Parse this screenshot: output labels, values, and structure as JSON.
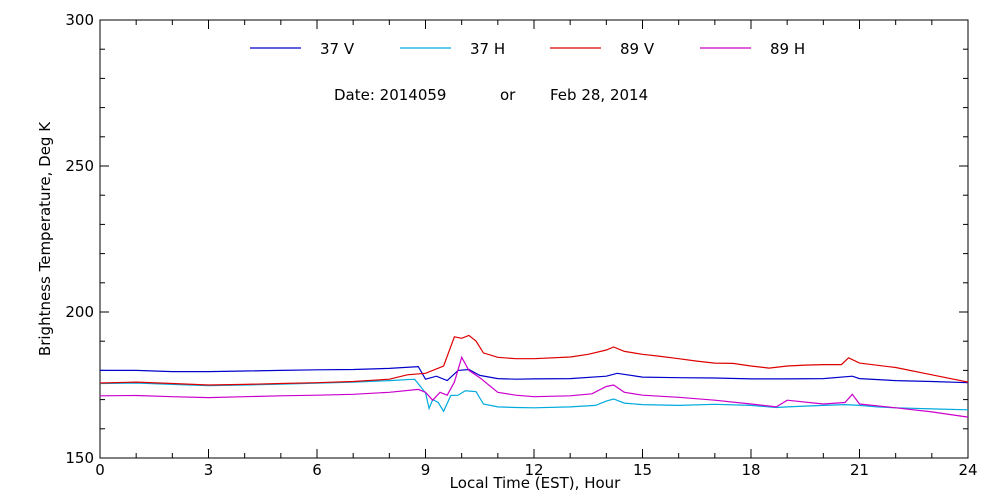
{
  "chart_data": {
    "type": "line",
    "title": "",
    "xlabel": "Local Time (EST), Hour",
    "ylabel": "Brightness Temperature, Deg K",
    "xlim": [
      0,
      24
    ],
    "ylim": [
      150,
      300
    ],
    "xticks": [
      "0",
      "3",
      "6",
      "9",
      "12",
      "15",
      "18",
      "21",
      "24"
    ],
    "yticks": [
      "150",
      "200",
      "250",
      "300"
    ],
    "grid": false,
    "legend_position": "top",
    "annotation": {
      "date_label": "Date: 2014059",
      "or_label": "or",
      "date_text": "Feb 28, 2014"
    },
    "series": [
      {
        "name": "37 V",
        "color": "#0000cc",
        "x": [
          0,
          1,
          2,
          3,
          4,
          5,
          6,
          7,
          8,
          8.8,
          9,
          9.3,
          9.6,
          9.9,
          10.2,
          10.5,
          11,
          11.5,
          12,
          13,
          14,
          14.3,
          15,
          16,
          17,
          18,
          19,
          20,
          20.8,
          21,
          22,
          23,
          24
        ],
        "y": [
          180,
          180,
          179.6,
          179.6,
          179.8,
          180,
          180.2,
          180.3,
          180.7,
          181.3,
          177,
          178,
          176.5,
          180,
          180.3,
          178.3,
          177.2,
          177,
          177.1,
          177.2,
          178,
          179,
          177.7,
          177.5,
          177.4,
          177.1,
          177.1,
          177.2,
          178,
          177.2,
          176.5,
          176.2,
          175.8
        ]
      },
      {
        "name": "37 H",
        "color": "#00aadd",
        "x": [
          0,
          1,
          2,
          3,
          4,
          5,
          6,
          7,
          8,
          8.7,
          9,
          9.1,
          9.2,
          9.35,
          9.5,
          9.7,
          9.9,
          10.1,
          10.4,
          10.6,
          11,
          11.5,
          12,
          13,
          13.7,
          14,
          14.2,
          14.5,
          15,
          16,
          17,
          18,
          18.7,
          19,
          20,
          20.6,
          21,
          21.5,
          22,
          23,
          24
        ],
        "y": [
          175.5,
          175.7,
          175.2,
          174.8,
          175,
          175.3,
          175.6,
          176,
          176.5,
          177,
          172.3,
          167,
          170,
          169,
          166,
          171.4,
          171.5,
          173,
          172.7,
          168.5,
          167.5,
          167.3,
          167.2,
          167.5,
          168,
          169.5,
          170.2,
          168.8,
          168.3,
          168,
          168.4,
          168,
          167.3,
          167.5,
          168,
          168.3,
          168,
          167.5,
          167.2,
          166.8,
          166.5
        ]
      },
      {
        "name": "89 V",
        "color": "#dd0000",
        "x": [
          0,
          1,
          2,
          3,
          4,
          5,
          6,
          7,
          8,
          8.5,
          9,
          9.5,
          9.8,
          10,
          10.2,
          10.4,
          10.6,
          11,
          11.5,
          12,
          13,
          13.5,
          14,
          14.2,
          14.5,
          15,
          15.5,
          16,
          16.5,
          17,
          17.5,
          18,
          18.5,
          19,
          19.5,
          20,
          20.5,
          20.7,
          21,
          22,
          23,
          24
        ],
        "y": [
          175.7,
          176,
          175.5,
          175,
          175.2,
          175.5,
          175.8,
          176.2,
          177,
          178.5,
          179,
          181.5,
          191.5,
          191,
          192,
          190,
          186,
          184.5,
          184,
          184,
          184.6,
          185.5,
          187,
          188,
          186.5,
          185.5,
          184.8,
          184,
          183.2,
          182.5,
          182.4,
          181.5,
          180.8,
          181.5,
          181.8,
          182,
          182,
          184.3,
          182.5,
          181,
          178.5,
          176
        ]
      },
      {
        "name": "89 H",
        "color": "#cc00cc",
        "x": [
          0,
          1,
          2,
          3,
          4,
          5,
          6,
          7,
          8,
          8.8,
          9,
          9.2,
          9.4,
          9.6,
          9.8,
          10,
          10.2,
          10.5,
          11,
          11.5,
          12,
          13,
          13.6,
          14,
          14.2,
          14.5,
          15,
          16,
          17,
          18,
          18.7,
          19,
          20,
          20.6,
          20.8,
          21,
          22,
          23,
          24
        ],
        "y": [
          171.3,
          171.4,
          171,
          170.7,
          171,
          171.3,
          171.5,
          171.8,
          172.5,
          173.5,
          172.5,
          169.8,
          172.5,
          171.5,
          176,
          184.5,
          180,
          177.5,
          172.5,
          171.5,
          171,
          171.3,
          172,
          174.5,
          175,
          172.5,
          171.5,
          170.8,
          169.8,
          168.5,
          167.5,
          169.8,
          168.5,
          169,
          171.8,
          168.5,
          167.2,
          165.8,
          164
        ]
      }
    ]
  }
}
